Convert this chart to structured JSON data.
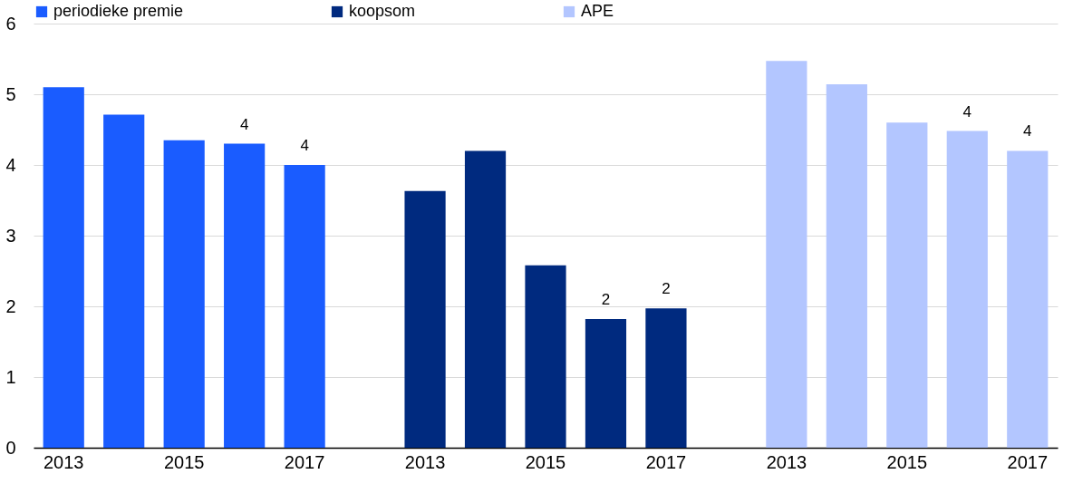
{
  "chart_data": {
    "type": "bar",
    "categories": [
      "2013",
      null,
      "2015",
      null,
      "2017",
      null,
      "2013",
      null,
      "2015",
      null,
      "2017",
      null,
      "2013",
      null,
      "2015",
      null,
      "2017"
    ],
    "series": [
      {
        "name": "periodieke premie",
        "color": "#1a5cff",
        "values": [
          5.1,
          4.71,
          4.35,
          4.3,
          4.0,
          null,
          null,
          null,
          null,
          null,
          null,
          null,
          null,
          null,
          null,
          null,
          null
        ],
        "value_labels": [
          null,
          null,
          null,
          "4",
          "4",
          null,
          null,
          null,
          null,
          null,
          null,
          null,
          null,
          null,
          null,
          null,
          null
        ]
      },
      {
        "name": "koopsom",
        "color": "#002a7f",
        "values": [
          null,
          null,
          null,
          null,
          null,
          null,
          3.63,
          4.2,
          2.58,
          1.82,
          1.97,
          null,
          null,
          null,
          null,
          null,
          null
        ],
        "value_labels": [
          null,
          null,
          null,
          null,
          null,
          null,
          null,
          null,
          null,
          "2",
          "2",
          null,
          null,
          null,
          null,
          null,
          null
        ]
      },
      {
        "name": "APE",
        "color": "#b3c6ff",
        "values": [
          null,
          null,
          null,
          null,
          null,
          null,
          null,
          null,
          null,
          null,
          null,
          null,
          5.47,
          5.14,
          4.6,
          4.48,
          4.2
        ],
        "value_labels": [
          null,
          null,
          null,
          null,
          null,
          null,
          null,
          null,
          null,
          null,
          null,
          null,
          null,
          null,
          null,
          "4",
          "4"
        ]
      }
    ],
    "ylim": [
      0,
      6
    ],
    "yticks": [
      0,
      1,
      2,
      3,
      4,
      5,
      6
    ],
    "grid": "y",
    "legend": "top"
  }
}
